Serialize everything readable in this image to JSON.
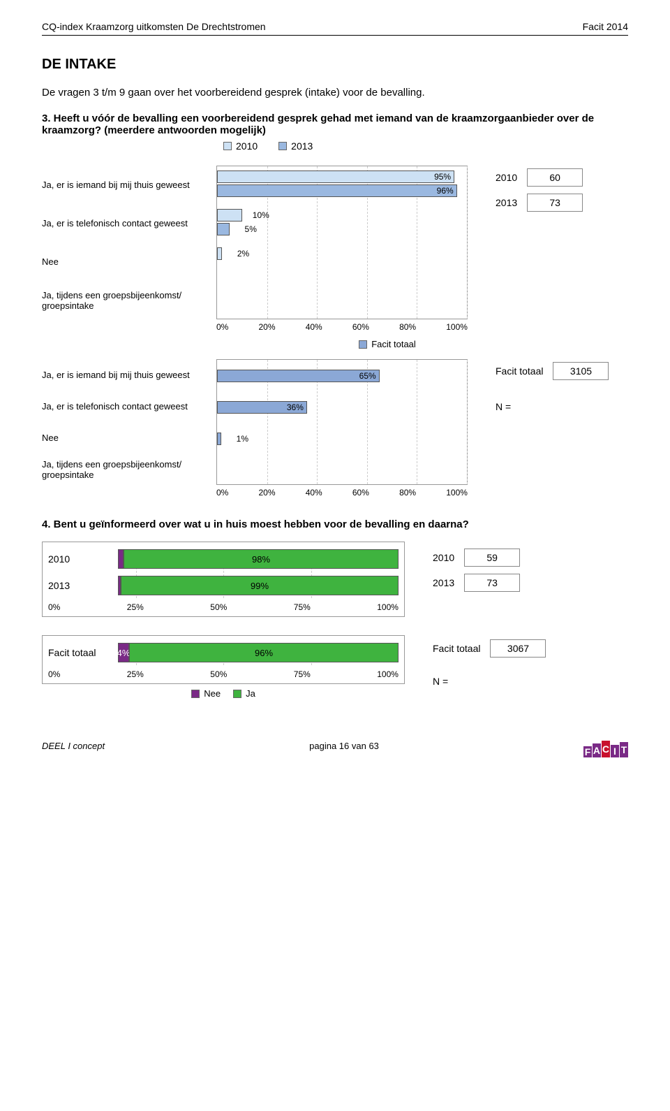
{
  "header": {
    "left": "CQ-index Kraamzorg uitkomsten De Drechtstromen",
    "right": "Facit 2014"
  },
  "section_title": "DE INTAKE",
  "intro": "De vragen 3 t/m 9 gaan over het voorbereidend gesprek (intake) voor de bevalling.",
  "q3": {
    "question": "3. Heeft u vóór de bevalling een voorbereidend gesprek gehad met iemand van de kraamzorgaanbieder over de kraamzorg? (meerdere antwoorden mogelijk)",
    "legend": {
      "y2010": {
        "label": "2010",
        "color": "#cde1f4"
      },
      "y2013": {
        "label": "2013",
        "color": "#9ab8e0"
      }
    },
    "categories": [
      {
        "label": "Ja, er is iemand bij mij thuis geweest",
        "v2010": 95,
        "v2013": 96
      },
      {
        "label": "Ja, er is telefonisch contact geweest",
        "v2010": 10,
        "v2013": 5
      },
      {
        "label": "Nee",
        "v2010": 2,
        "v2013": null
      },
      {
        "label": "Ja, tijdens een groepsbijeenkomst/ groepsintake",
        "v2010": null,
        "v2013": null
      }
    ],
    "axis": [
      "0%",
      "20%",
      "40%",
      "60%",
      "80%",
      "100%"
    ],
    "side": {
      "y2010": {
        "label": "2010",
        "n": "60"
      },
      "y2013": {
        "label": "2013",
        "n": "73"
      }
    },
    "facit": {
      "legend_label": "Facit totaal",
      "color": "#8ba8d6",
      "categories": [
        {
          "label": "Ja, er is iemand bij mij thuis geweest",
          "v": 65
        },
        {
          "label": "Ja, er is telefonisch contact geweest",
          "v": 36
        },
        {
          "label": "Nee",
          "v": 1
        },
        {
          "label": "Ja, tijdens een groepsbijeenkomst/ groepsintake",
          "v": null
        }
      ],
      "axis": [
        "0%",
        "20%",
        "40%",
        "60%",
        "80%",
        "100%"
      ],
      "side": {
        "label": "Facit totaal",
        "n": "3105",
        "n_eq": "N ="
      }
    }
  },
  "q4": {
    "question": "4. Bent u geïnformeerd over wat u in huis moest hebben voor de bevalling en daarna?",
    "colors": {
      "nee": "#7a2a86",
      "ja": "#3fb33f",
      "border": "#555555"
    },
    "rows": [
      {
        "label": "2010",
        "nee": 2,
        "ja": 98
      },
      {
        "label": "2013",
        "nee": 1,
        "ja": 99
      }
    ],
    "axis": [
      "0%",
      "25%",
      "50%",
      "75%",
      "100%"
    ],
    "side": {
      "y2010": {
        "label": "2010",
        "n": "59"
      },
      "y2013": {
        "label": "2013",
        "n": "73"
      }
    },
    "facit": {
      "label": "Facit totaal",
      "nee": 4,
      "ja": 96,
      "axis": [
        "0%",
        "25%",
        "50%",
        "75%",
        "100%"
      ],
      "legend": {
        "nee_label": "Nee",
        "ja_label": "Ja"
      },
      "side": {
        "label": "Facit totaal",
        "n": "3067",
        "n_eq": "N ="
      }
    }
  },
  "footer": {
    "left": "DEEL I  concept",
    "center": "pagina 16 van 63",
    "logo_letters": [
      "F",
      "A",
      "C",
      "I",
      "T"
    ],
    "logo_colors": [
      "#7a2a86",
      "#7a2a86",
      "#c8102e",
      "#7a2a86",
      "#7a2a86"
    ],
    "logo_heights": [
      16,
      20,
      24,
      18,
      22
    ]
  }
}
